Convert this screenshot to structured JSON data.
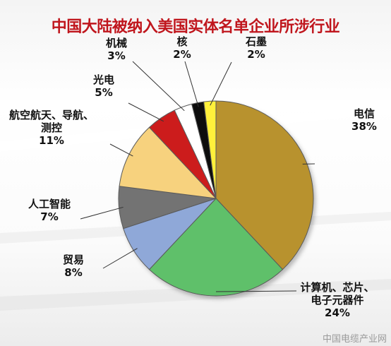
{
  "title": "中国大陆被纳入美国实体名单企业所涉行业",
  "watermark": "中国电缆产业网",
  "colors": {
    "title": "#c0161d",
    "slices": [
      "#b8922e",
      "#5ec06a",
      "#8fa8d8",
      "#737373",
      "#f7d27e",
      "#cc1e1e",
      "#ffffff",
      "#111111",
      "#fff03a"
    ]
  },
  "chart_data": {
    "type": "pie",
    "title": "中国大陆被纳入美国实体名单企业所涉行业",
    "start_angle": "12 o'clock, clockwise",
    "slices": [
      {
        "label_lines": [
          "电信"
        ],
        "value": 38,
        "percent_text": "38%"
      },
      {
        "label_lines": [
          "计算机、芯片、",
          "电子元器件"
        ],
        "value": 24,
        "percent_text": "24%"
      },
      {
        "label_lines": [
          "贸易"
        ],
        "value": 8,
        "percent_text": "8%"
      },
      {
        "label_lines": [
          "人工智能"
        ],
        "value": 7,
        "percent_text": "7%"
      },
      {
        "label_lines": [
          "航空航天、导航、",
          "测控"
        ],
        "value": 11,
        "percent_text": "11%"
      },
      {
        "label_lines": [
          "光电"
        ],
        "value": 5,
        "percent_text": "5%"
      },
      {
        "label_lines": [
          "机械"
        ],
        "value": 3,
        "percent_text": "3%"
      },
      {
        "label_lines": [
          "核"
        ],
        "value": 2,
        "percent_text": "2%"
      },
      {
        "label_lines": [
          "石墨"
        ],
        "value": 2,
        "percent_text": "2%"
      }
    ]
  }
}
